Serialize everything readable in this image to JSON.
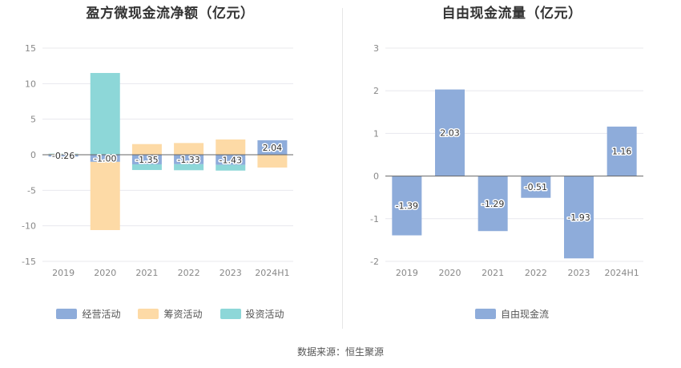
{
  "source_text": "数据来源：恒生聚源",
  "chart_data": [
    {
      "type": "bar",
      "stacked": true,
      "title": "盈方微现金流净额（亿元）",
      "categories": [
        "2019",
        "2020",
        "2021",
        "2022",
        "2023",
        "2024H1"
      ],
      "ylim": [
        -15,
        15
      ],
      "yticks": [
        15,
        10,
        5,
        0,
        -5,
        -10,
        -15
      ],
      "grid": true,
      "legend_position": "bottom",
      "series": [
        {
          "name": "经营活动",
          "color": "#8eacda",
          "values": [
            -0.26,
            -1.0,
            -1.35,
            -1.33,
            -1.43,
            2.04
          ]
        },
        {
          "name": "筹资活动",
          "color": "#fddaa6",
          "values": [
            0.1,
            -9.6,
            1.5,
            1.65,
            2.15,
            -1.8
          ]
        },
        {
          "name": "投资活动",
          "color": "#8dd7d8",
          "values": [
            0.05,
            11.5,
            -0.8,
            -0.85,
            -0.8,
            0.0
          ]
        }
      ],
      "data_labels": [
        "-0.26",
        "-1.00",
        "-1.35",
        "-1.33",
        "-1.43",
        "2.04"
      ]
    },
    {
      "type": "bar",
      "title": "自由现金流量（亿元）",
      "categories": [
        "2019",
        "2020",
        "2021",
        "2022",
        "2023",
        "2024H1"
      ],
      "ylim": [
        -2,
        3
      ],
      "yticks": [
        3,
        2,
        1,
        0,
        -1,
        -2
      ],
      "grid": true,
      "legend_position": "bottom",
      "series": [
        {
          "name": "自由现金流",
          "color": "#8eacda",
          "values": [
            -1.39,
            2.03,
            -1.29,
            -0.51,
            -1.93,
            1.16
          ]
        }
      ],
      "data_labels": [
        "-1.39",
        "2.03",
        "-1.29",
        "-0.51",
        "-1.93",
        "1.16"
      ]
    }
  ]
}
